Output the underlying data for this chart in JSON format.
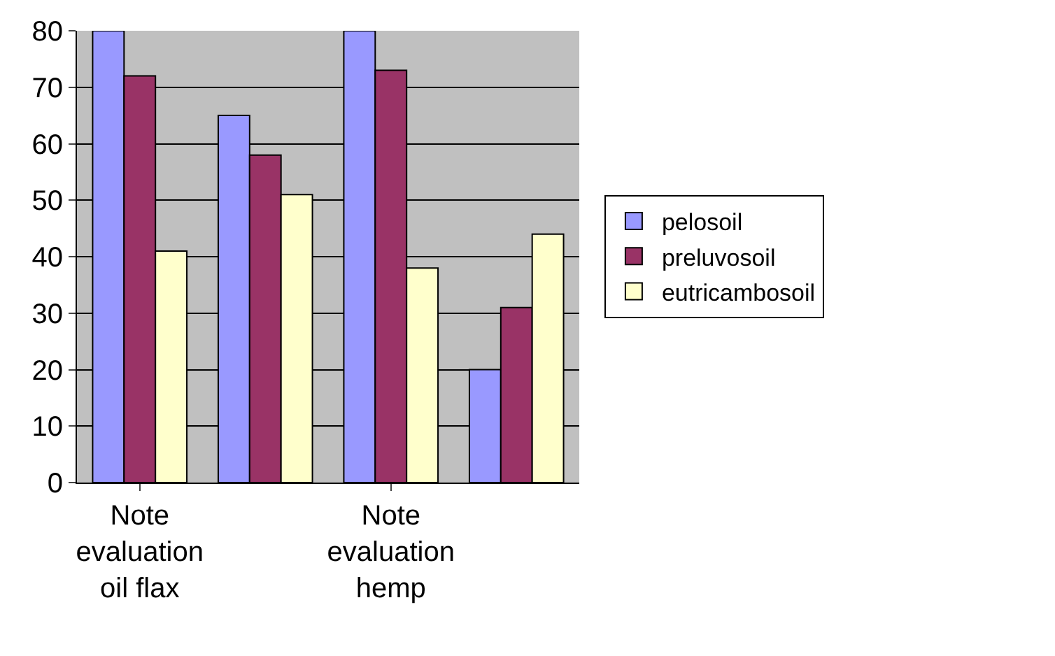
{
  "chart_data": {
    "type": "bar",
    "categories": [
      "Note evaluation oil flax",
      null,
      "Note evaluation hemp",
      null
    ],
    "series": [
      {
        "name": "pelosoil",
        "color": "#9999ff",
        "values": [
          80,
          65,
          80,
          20
        ]
      },
      {
        "name": "preluvosoil",
        "color": "#993366",
        "values": [
          72,
          58,
          73,
          31
        ]
      },
      {
        "name": "eutricambosoil",
        "color": "#ffffcc",
        "values": [
          41,
          51,
          38,
          44
        ]
      }
    ],
    "ylim": [
      0,
      80
    ],
    "yticks": [
      0,
      10,
      20,
      30,
      40,
      50,
      60,
      70,
      80
    ],
    "grid": "y",
    "legend": "right"
  }
}
